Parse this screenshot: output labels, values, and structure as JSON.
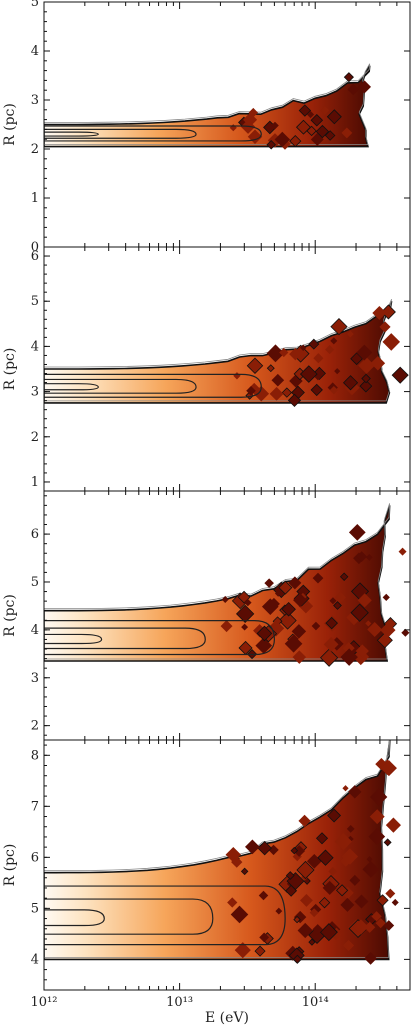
{
  "chart_data": [
    {
      "type": "heatmap",
      "panel": 1,
      "ylabel": "R (pc)",
      "xlabel": "",
      "ylim": [
        0,
        5
      ],
      "xlim": [
        1000000000000.0,
        500000000000000.0
      ],
      "x_log": true,
      "yticks": [
        "0",
        "1",
        "2",
        "3",
        "4",
        "5"
      ],
      "density": {
        "band_r": [
          2.05,
          2.5
        ],
        "peak_r": 2.3,
        "core_e_max": 40000000000000.0,
        "fringe_e_max": 250000000000000.0,
        "tail_r_max": 3.7
      }
    },
    {
      "type": "heatmap",
      "panel": 2,
      "ylabel": "R (pc)",
      "xlabel": "",
      "ylim": [
        0.8,
        6.2
      ],
      "xlim": [
        1000000000000.0,
        500000000000000.0
      ],
      "x_log": true,
      "yticks": [
        "1",
        "2",
        "3",
        "4",
        "5",
        "6"
      ],
      "density": {
        "band_r": [
          2.75,
          3.5
        ],
        "peak_r": 3.1,
        "core_e_max": 40000000000000.0,
        "fringe_e_max": 350000000000000.0,
        "tail_r_max": 5.0
      }
    },
    {
      "type": "heatmap",
      "panel": 3,
      "ylabel": "R (pc)",
      "xlabel": "",
      "ylim": [
        1.7,
        6.9
      ],
      "xlim": [
        1000000000000.0,
        500000000000000.0
      ],
      "x_log": true,
      "yticks": [
        "2",
        "3",
        "4",
        "5",
        "6"
      ],
      "density": {
        "band_r": [
          3.35,
          4.4
        ],
        "peak_r": 3.8,
        "core_e_max": 50000000000000.0,
        "fringe_e_max": 350000000000000.0,
        "tail_r_max": 6.6
      }
    },
    {
      "type": "heatmap",
      "panel": 4,
      "ylabel": "R (pc)",
      "xlabel": "E (eV)",
      "ylim": [
        3.4,
        8.3
      ],
      "xlim": [
        1000000000000.0,
        500000000000000.0
      ],
      "x_log": true,
      "yticks": [
        "4",
        "5",
        "6",
        "7",
        "8"
      ],
      "xticks": [
        "10¹²",
        "10¹³",
        "10¹⁴"
      ],
      "density": {
        "band_r": [
          4.0,
          5.7
        ],
        "peak_r": 4.8,
        "core_e_max": 60000000000000.0,
        "fringe_e_max": 350000000000000.0,
        "tail_r_max": 8.3
      }
    }
  ]
}
